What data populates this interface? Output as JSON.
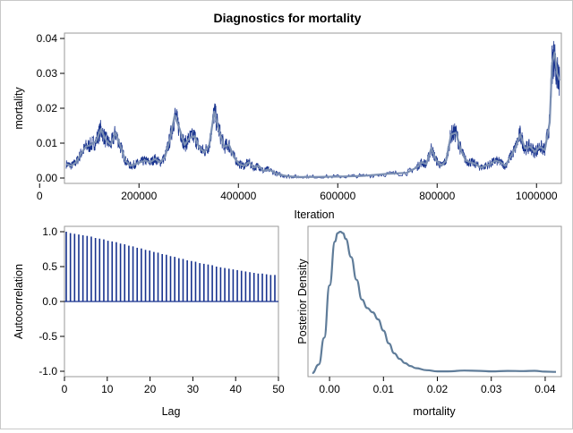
{
  "title": "Diagnostics for mortality",
  "colors": {
    "trace": "#17328e",
    "smooth": "#7b8fb3",
    "density": "#5f7c99",
    "acf": "#17328e"
  },
  "chart_data": [
    {
      "type": "line",
      "name": "trace",
      "xlabel": "Iteration",
      "ylabel": "mortality",
      "xlim": [
        50000,
        1050000
      ],
      "ylim": [
        0,
        0.04
      ],
      "xticks": [
        0,
        200000,
        400000,
        600000,
        800000,
        1000000
      ],
      "xtick_labels": [
        "0",
        "200000",
        "400000",
        "600000",
        "800000",
        "1000000"
      ],
      "yticks": [
        0,
        0.01,
        0.02,
        0.03,
        0.04
      ],
      "ytick_labels": [
        "0.00",
        "0.01",
        "0.02",
        "0.03",
        "0.04"
      ],
      "x": [
        50000,
        60000,
        70000,
        80000,
        90000,
        100000,
        110000,
        120000,
        130000,
        140000,
        150000,
        160000,
        170000,
        180000,
        190000,
        200000,
        210000,
        220000,
        230000,
        240000,
        250000,
        260000,
        270000,
        280000,
        290000,
        300000,
        310000,
        320000,
        330000,
        340000,
        350000,
        360000,
        370000,
        380000,
        390000,
        400000,
        410000,
        420000,
        430000,
        440000,
        450000,
        460000,
        480000,
        500000,
        520000,
        550000,
        600000,
        650000,
        700000,
        740000,
        760000,
        770000,
        780000,
        790000,
        800000,
        810000,
        820000,
        830000,
        840000,
        850000,
        860000,
        870000,
        880000,
        890000,
        900000,
        910000,
        920000,
        930000,
        940000,
        950000,
        960000,
        970000,
        980000,
        990000,
        1000000,
        1010000,
        1020000,
        1030000,
        1035000,
        1040000,
        1045000,
        1050000
      ],
      "y": [
        0.004,
        0.0035,
        0.0045,
        0.007,
        0.009,
        0.0095,
        0.0105,
        0.014,
        0.011,
        0.0095,
        0.013,
        0.009,
        0.005,
        0.0035,
        0.004,
        0.0045,
        0.005,
        0.0045,
        0.0055,
        0.0045,
        0.006,
        0.011,
        0.018,
        0.014,
        0.0095,
        0.0115,
        0.012,
        0.0085,
        0.0075,
        0.0095,
        0.019,
        0.0135,
        0.009,
        0.0095,
        0.006,
        0.004,
        0.0035,
        0.0045,
        0.003,
        0.0035,
        0.002,
        0.0025,
        0.001,
        0.0005,
        0.0003,
        0.0003,
        0.0004,
        0.0006,
        0.0012,
        0.0015,
        0.003,
        0.0045,
        0.004,
        0.0085,
        0.005,
        0.0035,
        0.005,
        0.0125,
        0.013,
        0.008,
        0.005,
        0.0045,
        0.004,
        0.003,
        0.0035,
        0.004,
        0.005,
        0.0045,
        0.0035,
        0.006,
        0.0085,
        0.0125,
        0.0085,
        0.009,
        0.0075,
        0.009,
        0.008,
        0.016,
        0.033,
        0.036,
        0.03,
        0.028
      ]
    },
    {
      "type": "bar",
      "name": "autocorrelation",
      "xlabel": "Lag",
      "ylabel": "Autocorrelation",
      "xlim": [
        0,
        50
      ],
      "ylim": [
        -1,
        1
      ],
      "xticks": [
        0,
        10,
        20,
        30,
        40,
        50
      ],
      "xtick_labels": [
        "0",
        "10",
        "20",
        "30",
        "40",
        "50"
      ],
      "yticks": [
        -1,
        -0.5,
        0,
        0.5,
        1
      ],
      "ytick_labels": [
        "-1.0",
        "-0.5",
        "0.0",
        "0.5",
        "1.0"
      ],
      "lags": [
        0,
        1,
        2,
        3,
        4,
        5,
        6,
        7,
        8,
        9,
        10,
        11,
        12,
        13,
        14,
        15,
        16,
        17,
        18,
        19,
        20,
        21,
        22,
        23,
        24,
        25,
        26,
        27,
        28,
        29,
        30,
        31,
        32,
        33,
        34,
        35,
        36,
        37,
        38,
        39,
        40,
        41,
        42,
        43,
        44,
        45,
        46,
        47,
        48,
        49,
        50
      ],
      "values": [
        1.0,
        0.98,
        0.97,
        0.96,
        0.95,
        0.94,
        0.93,
        0.91,
        0.9,
        0.89,
        0.87,
        0.86,
        0.85,
        0.83,
        0.82,
        0.8,
        0.79,
        0.77,
        0.76,
        0.74,
        0.73,
        0.71,
        0.7,
        0.68,
        0.67,
        0.65,
        0.64,
        0.62,
        0.61,
        0.59,
        0.58,
        0.57,
        0.55,
        0.54,
        0.53,
        0.52,
        0.5,
        0.49,
        0.48,
        0.47,
        0.46,
        0.45,
        0.44,
        0.43,
        0.42,
        0.41,
        0.4,
        0.4,
        0.39,
        0.38,
        0.38
      ]
    },
    {
      "type": "line",
      "name": "posterior-density",
      "xlabel": "mortality",
      "ylabel": "Posterior Density",
      "xlim": [
        -0.004,
        0.043
      ],
      "ylim": [
        0,
        1
      ],
      "xticks": [
        0,
        0.01,
        0.02,
        0.03,
        0.04
      ],
      "xtick_labels": [
        "0.00",
        "0.01",
        "0.02",
        "0.03",
        "0.04"
      ],
      "x": [
        -0.0032,
        -0.002,
        -0.001,
        0.0,
        0.001,
        0.0015,
        0.002,
        0.0025,
        0.003,
        0.004,
        0.005,
        0.006,
        0.007,
        0.008,
        0.009,
        0.01,
        0.011,
        0.012,
        0.013,
        0.014,
        0.015,
        0.016,
        0.018,
        0.02,
        0.022,
        0.025,
        0.028,
        0.03,
        0.033,
        0.036,
        0.038,
        0.04,
        0.042
      ],
      "y": [
        0.0,
        0.06,
        0.25,
        0.62,
        0.93,
        0.99,
        1.0,
        0.99,
        0.95,
        0.82,
        0.66,
        0.52,
        0.46,
        0.43,
        0.38,
        0.3,
        0.21,
        0.14,
        0.1,
        0.07,
        0.05,
        0.035,
        0.02,
        0.012,
        0.012,
        0.018,
        0.015,
        0.012,
        0.015,
        0.014,
        0.016,
        0.01,
        0.008
      ]
    }
  ]
}
